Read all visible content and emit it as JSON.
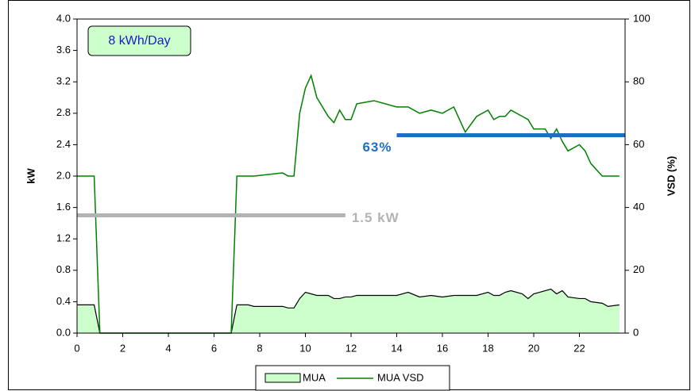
{
  "chart_data": {
    "type": "line",
    "note": "8 kWh/Day",
    "y_label": "kW",
    "y2_label": "VSD (%)",
    "xlim": [
      0,
      24
    ],
    "xticks": [
      0,
      2,
      4,
      6,
      8,
      10,
      12,
      14,
      16,
      18,
      20,
      22
    ],
    "ylim": [
      0,
      4
    ],
    "yticks": [
      {
        "value": 0,
        "label": "0.0"
      },
      0.4,
      0.8,
      1.2,
      1.6,
      {
        "value": 2,
        "label": "2.0"
      },
      2.4,
      2.8,
      3.2,
      3.6,
      {
        "value": 4,
        "label": "4.0"
      }
    ],
    "y2lim": [
      0,
      100
    ],
    "y2ticks": [
      0,
      20,
      40,
      60,
      80,
      100
    ],
    "x": [
      0,
      0.75,
      1,
      6.75,
      7,
      7.5,
      7.75,
      9,
      9.25,
      9.5,
      9.75,
      10,
      10.25,
      10.5,
      11,
      11.25,
      11.5,
      11.75,
      12,
      12.25,
      13,
      14,
      14.5,
      15,
      15.5,
      16,
      16.5,
      17,
      17.5,
      18,
      18.25,
      18.5,
      18.75,
      19,
      19.5,
      19.75,
      20,
      20.5,
      20.75,
      21,
      21.25,
      21.5,
      22,
      22.25,
      22.5,
      23,
      23.25,
      23.75
    ],
    "series": [
      {
        "name": "MUA",
        "kind": "area",
        "color": "#ccffcc",
        "edge": "#000000",
        "values": [
          0.36,
          0.36,
          0,
          0,
          0.36,
          0.36,
          0.34,
          0.34,
          0.32,
          0.32,
          0.44,
          0.52,
          0.5,
          0.48,
          0.48,
          0.44,
          0.44,
          0.46,
          0.46,
          0.48,
          0.48,
          0.48,
          0.52,
          0.46,
          0.48,
          0.46,
          0.48,
          0.48,
          0.48,
          0.52,
          0.48,
          0.48,
          0.52,
          0.54,
          0.5,
          0.44,
          0.5,
          0.54,
          0.56,
          0.5,
          0.54,
          0.46,
          0.44,
          0.44,
          0.4,
          0.38,
          0.34,
          0.36
        ]
      },
      {
        "name": "MUA VSD",
        "kind": "line",
        "axis": "y2",
        "color": "#008000",
        "values": [
          50,
          50,
          0,
          0,
          50,
          50,
          50,
          51,
          50,
          50,
          70,
          78,
          82,
          75,
          69,
          67,
          71,
          68,
          68,
          73,
          74,
          72,
          72,
          70,
          71,
          70,
          72,
          64,
          69,
          71,
          68,
          69,
          69,
          71,
          69,
          68,
          65,
          65,
          62,
          65,
          61,
          58,
          60,
          58,
          54,
          50,
          50,
          50
        ]
      }
    ],
    "reference_lines": [
      {
        "text": "1.5 kW",
        "value": 1.5,
        "axis": "y",
        "x": [
          0,
          11.75
        ],
        "color": "#b3b3b3"
      },
      {
        "text": "63%",
        "value": 63,
        "axis": "y2",
        "x": [
          14,
          24
        ],
        "color": "#1f6fc0"
      }
    ]
  }
}
